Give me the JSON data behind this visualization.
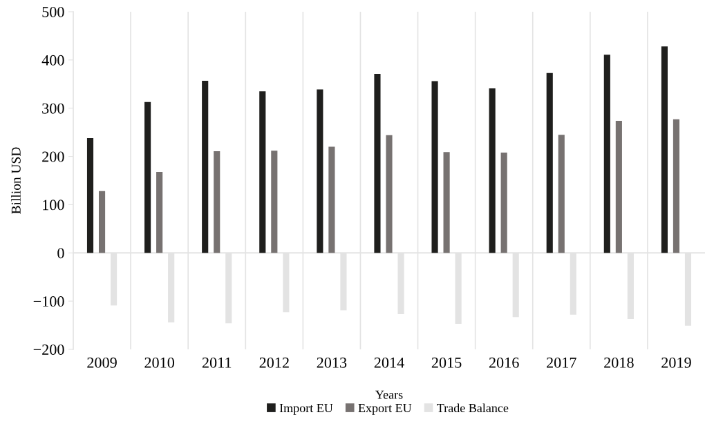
{
  "chart_data": {
    "type": "bar",
    "xlabel": "Years",
    "ylabel": "Billion USD",
    "categories": [
      "2009",
      "2010",
      "2011",
      "2012",
      "2013",
      "2014",
      "2015",
      "2016",
      "2017",
      "2018",
      "2019"
    ],
    "series": [
      {
        "name": "Import EU",
        "color": "#1f1f1d",
        "values": [
          238,
          313,
          357,
          335,
          339,
          371,
          356,
          341,
          373,
          411,
          428
        ]
      },
      {
        "name": "Export EU",
        "color": "#777271",
        "values": [
          128,
          168,
          211,
          212,
          220,
          244,
          209,
          208,
          245,
          274,
          277
        ]
      },
      {
        "name": "Trade Balance",
        "color": "#e3e3e3",
        "values": [
          -109,
          -144,
          -146,
          -123,
          -119,
          -127,
          -147,
          -133,
          -128,
          -137,
          -151
        ]
      }
    ],
    "ylim": [
      -200,
      500
    ],
    "yticks": [
      {
        "value": -200,
        "label": "−200"
      },
      {
        "value": -100,
        "label": "−100"
      },
      0,
      100,
      200,
      300,
      400,
      500
    ],
    "grid": "x",
    "legend": "bottom"
  }
}
